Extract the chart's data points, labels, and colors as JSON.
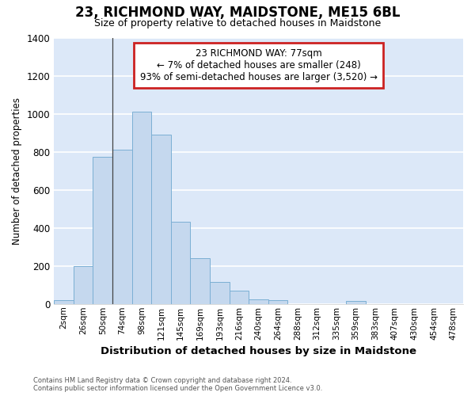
{
  "title": "23, RICHMOND WAY, MAIDSTONE, ME15 6BL",
  "subtitle": "Size of property relative to detached houses in Maidstone",
  "xlabel": "Distribution of detached houses by size in Maidstone",
  "ylabel": "Number of detached properties",
  "bar_labels": [
    "2sqm",
    "26sqm",
    "50sqm",
    "74sqm",
    "98sqm",
    "121sqm",
    "145sqm",
    "169sqm",
    "193sqm",
    "216sqm",
    "240sqm",
    "264sqm",
    "288sqm",
    "312sqm",
    "335sqm",
    "359sqm",
    "383sqm",
    "407sqm",
    "430sqm",
    "454sqm",
    "478sqm"
  ],
  "bar_values": [
    18,
    200,
    775,
    810,
    1010,
    890,
    430,
    240,
    115,
    70,
    25,
    20,
    0,
    0,
    0,
    15,
    0,
    0,
    0,
    0,
    0
  ],
  "bar_color": "#c5d8ee",
  "bar_edge_color": "#7bafd4",
  "plot_bg_color": "#dce8f8",
  "fig_bg_color": "#ffffff",
  "grid_color": "#ffffff",
  "ylim_max": 1400,
  "yticks": [
    0,
    200,
    400,
    600,
    800,
    1000,
    1200,
    1400
  ],
  "annotation_line1": "23 RICHMOND WAY: 77sqm",
  "annotation_line2": "← 7% of detached houses are smaller (248)",
  "annotation_line3": "93% of semi-detached houses are larger (3,520) →",
  "annotation_box_edge_color": "#cc2222",
  "vline_bar_idx": 3,
  "footer_line1": "Contains HM Land Registry data © Crown copyright and database right 2024.",
  "footer_line2": "Contains public sector information licensed under the Open Government Licence v3.0."
}
